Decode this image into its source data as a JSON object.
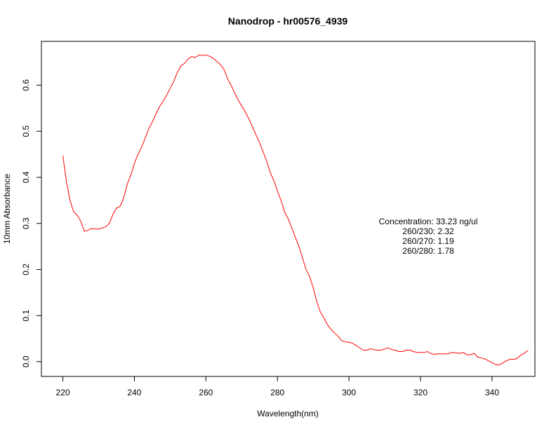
{
  "chart_data": {
    "type": "line",
    "title": "Nanodrop - hr00576_4939",
    "xlabel": "Wavelength(nm)",
    "ylabel": "10mm Absorbance",
    "xlim": [
      214,
      352
    ],
    "ylim": [
      -0.032,
      0.695
    ],
    "xticks": [
      220,
      240,
      260,
      280,
      300,
      320,
      340
    ],
    "xtick_labels": [
      "220",
      "240",
      "260",
      "280",
      "300",
      "320",
      "340"
    ],
    "yticks": [
      0.0,
      0.1,
      0.2,
      0.3,
      0.4,
      0.5,
      0.6
    ],
    "ytick_labels": [
      "0.0",
      "0.1",
      "0.2",
      "0.3",
      "0.4",
      "0.5",
      "0.6"
    ],
    "grid": false,
    "series_color": "#ff0000",
    "series": [
      {
        "x": [
          220,
          221,
          222,
          223,
          224,
          225,
          226,
          227,
          228,
          229,
          230,
          231,
          232,
          233,
          234,
          235,
          236,
          237,
          238,
          239,
          240,
          241,
          242,
          243,
          244,
          245,
          246,
          247,
          248,
          249,
          250,
          251,
          252,
          253,
          254,
          255,
          256,
          257,
          258,
          259,
          260,
          261,
          262,
          263,
          264,
          265,
          266,
          267,
          268,
          269,
          270,
          271,
          272,
          273,
          274,
          275,
          276,
          277,
          278,
          279,
          280,
          281,
          282,
          283,
          284,
          285,
          286,
          287,
          288,
          289,
          290,
          291,
          292,
          293,
          294,
          295,
          296,
          297,
          298,
          299,
          300,
          301,
          302,
          303,
          304,
          305,
          306,
          307,
          308,
          309,
          310,
          311,
          312,
          313,
          314,
          315,
          316,
          317,
          318,
          319,
          320,
          321,
          322,
          323,
          324,
          325,
          326,
          327,
          328,
          329,
          330,
          331,
          332,
          333,
          334,
          335,
          336,
          337,
          338,
          339,
          340,
          341,
          342,
          343,
          344,
          345,
          346,
          347,
          348,
          349,
          350
        ],
        "y": [
          0.447,
          0.39,
          0.35,
          0.325,
          0.318,
          0.305,
          0.283,
          0.285,
          0.289,
          0.288,
          0.288,
          0.29,
          0.293,
          0.3,
          0.32,
          0.333,
          0.337,
          0.355,
          0.385,
          0.405,
          0.43,
          0.45,
          0.465,
          0.485,
          0.505,
          0.52,
          0.537,
          0.553,
          0.565,
          0.578,
          0.593,
          0.608,
          0.628,
          0.642,
          0.647,
          0.657,
          0.662,
          0.66,
          0.665,
          0.665,
          0.665,
          0.663,
          0.658,
          0.652,
          0.645,
          0.635,
          0.615,
          0.6,
          0.584,
          0.568,
          0.555,
          0.542,
          0.527,
          0.51,
          0.492,
          0.475,
          0.455,
          0.435,
          0.41,
          0.393,
          0.37,
          0.35,
          0.325,
          0.31,
          0.29,
          0.27,
          0.25,
          0.225,
          0.2,
          0.185,
          0.16,
          0.13,
          0.108,
          0.095,
          0.08,
          0.07,
          0.062,
          0.055,
          0.045,
          0.043,
          0.042,
          0.04,
          0.035,
          0.03,
          0.025,
          0.025,
          0.028,
          0.026,
          0.025,
          0.025,
          0.028,
          0.03,
          0.026,
          0.025,
          0.022,
          0.022,
          0.025,
          0.025,
          0.022,
          0.02,
          0.02,
          0.02,
          0.022,
          0.017,
          0.016,
          0.017,
          0.017,
          0.017,
          0.018,
          0.02,
          0.019,
          0.018,
          0.02,
          0.015,
          0.015,
          0.018,
          0.01,
          0.008,
          0.006,
          0.002,
          -0.002,
          -0.006,
          -0.007,
          -0.003,
          0.002,
          0.005,
          0.005,
          0.007,
          0.014,
          0.018,
          0.024
        ]
      }
    ],
    "annotations": [
      "Concentration: 33.23 ng/ul",
      "260/230: 2.32",
      "260/270: 1.19",
      "260/280: 1.78"
    ]
  }
}
